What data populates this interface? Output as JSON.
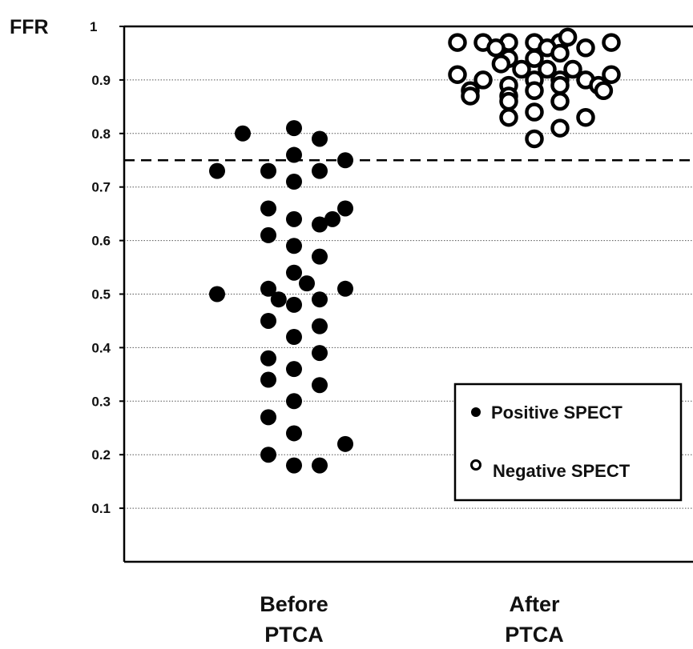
{
  "chart_data": {
    "type": "scatter",
    "ylabel": "FFR",
    "ylim": [
      0,
      1
    ],
    "yticks": [
      "1",
      "0.9",
      "0.8",
      "0.7",
      "0.6",
      "0.5",
      "0.4",
      "0.3",
      "0.2",
      "0.1"
    ],
    "categories": [
      "Before\nPTCA",
      "After\nPTCA"
    ],
    "category_lines": [
      [
        "Before",
        "PTCA"
      ],
      [
        "After",
        "PTCA"
      ]
    ],
    "threshold": 0.75,
    "grid": true,
    "legend_position": "lower-right",
    "series": [
      {
        "name": "Positive SPECT",
        "marker": "filled",
        "category": 0,
        "points": [
          {
            "x": -2,
            "y": 0.8
          },
          {
            "x": 0,
            "y": 0.81
          },
          {
            "x": 1,
            "y": 0.79
          },
          {
            "x": 0,
            "y": 0.76
          },
          {
            "x": -3,
            "y": 0.73
          },
          {
            "x": -1,
            "y": 0.73
          },
          {
            "x": 1,
            "y": 0.73
          },
          {
            "x": 2,
            "y": 0.75
          },
          {
            "x": 0,
            "y": 0.71
          },
          {
            "x": -1,
            "y": 0.66
          },
          {
            "x": 0,
            "y": 0.64
          },
          {
            "x": 1,
            "y": 0.63
          },
          {
            "x": 1.5,
            "y": 0.64
          },
          {
            "x": 2,
            "y": 0.66
          },
          {
            "x": -1,
            "y": 0.61
          },
          {
            "x": 0,
            "y": 0.59
          },
          {
            "x": 1,
            "y": 0.57
          },
          {
            "x": 0,
            "y": 0.54
          },
          {
            "x": 0.5,
            "y": 0.52
          },
          {
            "x": -3,
            "y": 0.5
          },
          {
            "x": -1,
            "y": 0.51
          },
          {
            "x": -0.6,
            "y": 0.49
          },
          {
            "x": 0,
            "y": 0.48
          },
          {
            "x": 1,
            "y": 0.49
          },
          {
            "x": 2,
            "y": 0.51
          },
          {
            "x": -1,
            "y": 0.45
          },
          {
            "x": 1,
            "y": 0.44
          },
          {
            "x": 0,
            "y": 0.42
          },
          {
            "x": -1,
            "y": 0.38
          },
          {
            "x": 1,
            "y": 0.39
          },
          {
            "x": 0,
            "y": 0.36
          },
          {
            "x": -1,
            "y": 0.34
          },
          {
            "x": 1,
            "y": 0.33
          },
          {
            "x": 0,
            "y": 0.3
          },
          {
            "x": -1,
            "y": 0.27
          },
          {
            "x": 0,
            "y": 0.24
          },
          {
            "x": 2,
            "y": 0.22
          },
          {
            "x": -1,
            "y": 0.2
          },
          {
            "x": 0,
            "y": 0.18
          },
          {
            "x": 1,
            "y": 0.18
          }
        ]
      },
      {
        "name": "Negative SPECT",
        "marker": "open",
        "category": 1,
        "points": [
          {
            "x": -3,
            "y": 0.97
          },
          {
            "x": -2,
            "y": 0.97
          },
          {
            "x": -1,
            "y": 0.97
          },
          {
            "x": 0,
            "y": 0.97
          },
          {
            "x": 1,
            "y": 0.97
          },
          {
            "x": 1.3,
            "y": 0.98
          },
          {
            "x": 2,
            "y": 0.96
          },
          {
            "x": 3,
            "y": 0.97
          },
          {
            "x": -1.5,
            "y": 0.96
          },
          {
            "x": 0.5,
            "y": 0.96
          },
          {
            "x": -1,
            "y": 0.94
          },
          {
            "x": 0,
            "y": 0.94
          },
          {
            "x": 1,
            "y": 0.95
          },
          {
            "x": -1.3,
            "y": 0.93
          },
          {
            "x": -0.5,
            "y": 0.92
          },
          {
            "x": 0.5,
            "y": 0.92
          },
          {
            "x": 1.5,
            "y": 0.92
          },
          {
            "x": -3,
            "y": 0.91
          },
          {
            "x": -2,
            "y": 0.9
          },
          {
            "x": -1,
            "y": 0.89
          },
          {
            "x": 0,
            "y": 0.9
          },
          {
            "x": 1,
            "y": 0.9
          },
          {
            "x": 2,
            "y": 0.9
          },
          {
            "x": 3,
            "y": 0.91
          },
          {
            "x": -2.5,
            "y": 0.88
          },
          {
            "x": -1,
            "y": 0.87
          },
          {
            "x": 0,
            "y": 0.88
          },
          {
            "x": 1,
            "y": 0.89
          },
          {
            "x": 2.5,
            "y": 0.89
          },
          {
            "x": 2.7,
            "y": 0.88
          },
          {
            "x": -2.5,
            "y": 0.87
          },
          {
            "x": -1,
            "y": 0.86
          },
          {
            "x": 1,
            "y": 0.86
          },
          {
            "x": -1,
            "y": 0.83
          },
          {
            "x": 0,
            "y": 0.84
          },
          {
            "x": 2,
            "y": 0.83
          },
          {
            "x": 1,
            "y": 0.81
          },
          {
            "x": 0,
            "y": 0.79
          }
        ]
      }
    ]
  }
}
